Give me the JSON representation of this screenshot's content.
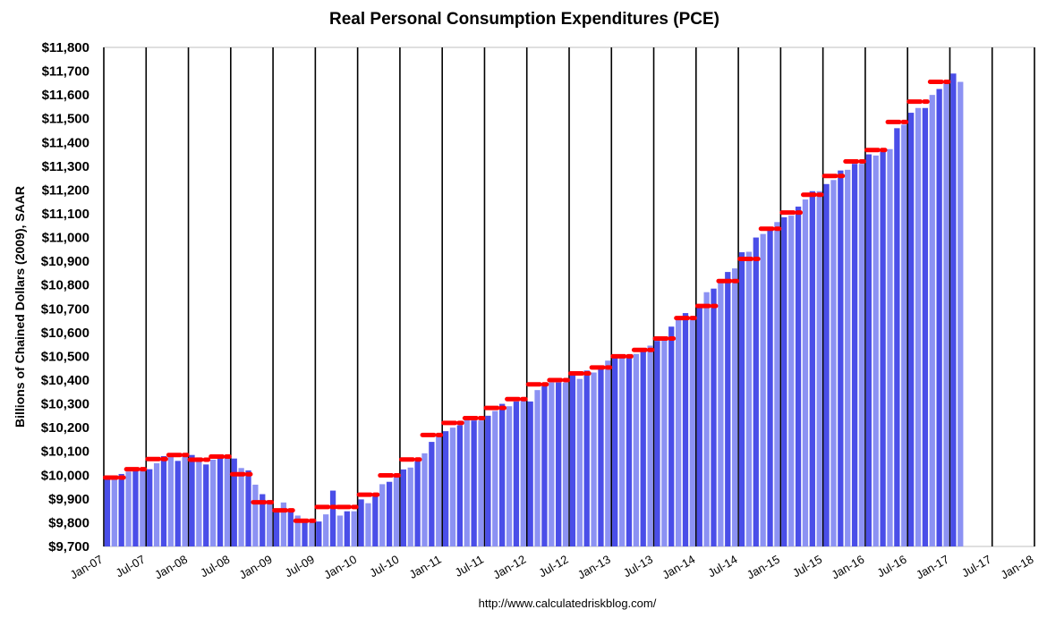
{
  "chart_data": {
    "type": "bar",
    "title": "Real Personal Consumption Expenditures (PCE)",
    "ylabel": "Billions of Chained Dollars (2009), SAAR",
    "xlabel": "",
    "ylim": [
      9700,
      11800
    ],
    "ytick_step": 100,
    "ytick_labels": [
      "$9,700",
      "$9,800",
      "$9,900",
      "$10,000",
      "$10,100",
      "$10,200",
      "$10,300",
      "$10,400",
      "$10,500",
      "$10,600",
      "$10,700",
      "$10,800",
      "$10,900",
      "$11,000",
      "$11,100",
      "$11,200",
      "$11,300",
      "$11,400",
      "$11,500",
      "$11,600",
      "$11,700",
      "$11,800"
    ],
    "xtick_labels": [
      "Jan-07",
      "Jul-07",
      "Jan-08",
      "Jul-08",
      "Jan-09",
      "Jul-09",
      "Jan-10",
      "Jul-10",
      "Jan-11",
      "Jul-11",
      "Jan-12",
      "Jul-12",
      "Jan-13",
      "Jul-13",
      "Jan-14",
      "Jul-14",
      "Jan-15",
      "Jul-15",
      "Jan-16",
      "Jul-16",
      "Jan-17",
      "Jul-17",
      "Jan-18"
    ],
    "x_start": "2007-01",
    "x_end": "2018-01",
    "grid": "vertical lines every 6 months",
    "series": [
      {
        "kind": "bars",
        "start": "2007-01",
        "colors": [
          "#4a4ee8",
          "#8c92f3"
        ],
        "values": [
          9990,
          9985,
          10005,
          10015,
          10030,
          10020,
          10025,
          10050,
          10080,
          10080,
          10060,
          10090,
          10085,
          10075,
          10045,
          10065,
          10075,
          10085,
          10070,
          10030,
          10020,
          9960,
          9920,
          9895,
          9845,
          9885,
          9860,
          9830,
          9810,
          9800,
          9805,
          9835,
          9935,
          9830,
          9848,
          9848,
          9898,
          9882,
          9912,
          9962,
          9972,
          10002,
          10024,
          10032,
          10058,
          10092,
          10140,
          10170,
          10185,
          10200,
          10210,
          10240,
          10230,
          10230,
          10250,
          10270,
          10300,
          10290,
          10310,
          10320,
          10310,
          10358,
          10380,
          10390,
          10390,
          10390,
          10420,
          10405,
          10440,
          10432,
          10458,
          10482,
          10500,
          10498,
          10502,
          10510,
          10535,
          10545,
          10565,
          10575,
          10625,
          10667,
          10682,
          10652,
          10712,
          10770,
          10785,
          10815,
          10855,
          10870,
          10938,
          10940,
          11000,
          11015,
          11035,
          11065,
          11085,
          11092,
          11130,
          11160,
          11195,
          11195,
          11225,
          11242,
          11282,
          11285,
          11310,
          11310,
          11350,
          11345,
          11370,
          11372,
          11460,
          11475,
          11525,
          11545,
          11545,
          11600,
          11625,
          11660,
          11690,
          11655
        ]
      },
      {
        "kind": "quarterly average markers",
        "color": "#ff0000",
        "start": "2007-01",
        "period_months": 3,
        "values": [
          9990,
          10025,
          10068,
          10085,
          10065,
          10078,
          10004,
          9886,
          9852,
          9808,
          9866,
          9866,
          9918,
          9999,
          10066,
          10169,
          10220,
          10240,
          10283,
          10320,
          10382,
          10400,
          10428,
          10453,
          10500,
          10527,
          10575,
          10661,
          10712,
          10817,
          10910,
          11037,
          11105,
          11180,
          11259,
          11320,
          11368,
          11486,
          11572,
          11655
        ]
      }
    ]
  },
  "footer": {
    "source": "http://www.calculatedriskblog.com/"
  },
  "colors": {
    "bar_dark": "#4a4ee8",
    "bar_light": "#8c92f3",
    "marker": "#ff0000",
    "gridline": "#000000",
    "frame": "#bfbfbf"
  }
}
